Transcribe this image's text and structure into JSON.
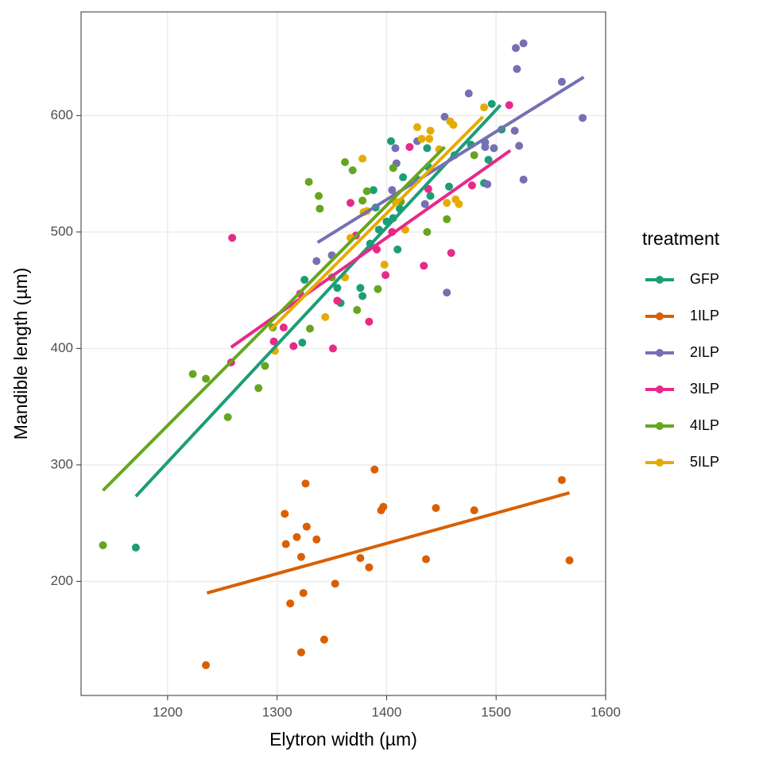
{
  "chart_data": {
    "type": "scatter",
    "x_label": "Elytron width (µm)",
    "y_label": "Mandible length (µm)",
    "legend_title": "treatment",
    "xlim": [
      1121,
      1600
    ],
    "ylim": [
      102,
      689
    ],
    "xticks": [
      1200,
      1300,
      1400,
      1500,
      1600
    ],
    "yticks": [
      200,
      300,
      400,
      500,
      600
    ],
    "grid": true,
    "legend": "right",
    "series": [
      {
        "name": "GFP",
        "color": "#1b9e77",
        "x": [
          1171,
          1325,
          1323,
          1355,
          1358,
          1376,
          1378,
          1385,
          1390,
          1393,
          1400,
          1404,
          1406,
          1410,
          1412,
          1415,
          1428,
          1437,
          1438,
          1440,
          1457,
          1462,
          1477,
          1489,
          1493,
          1496,
          1505,
          1388
        ],
        "values": [
          229,
          459,
          405,
          452,
          439,
          452,
          445,
          490,
          521,
          502,
          509,
          578,
          512,
          485,
          520,
          547,
          545,
          572,
          556,
          531,
          539,
          566,
          575,
          542,
          562,
          610,
          588,
          536
        ],
        "fit": {
          "x": [
            1171,
            1504
          ],
          "values": [
            273,
            609
          ]
        }
      },
      {
        "name": "1ILP",
        "color": "#d95f02",
        "x": [
          1235,
          1307,
          1308,
          1312,
          1318,
          1322,
          1322,
          1324,
          1326,
          1327,
          1336,
          1343,
          1353,
          1376,
          1384,
          1389,
          1395,
          1397,
          1436,
          1445,
          1480,
          1560,
          1567
        ],
        "values": [
          128,
          258,
          232,
          181,
          238,
          221,
          139,
          190,
          284,
          247,
          236,
          150,
          198,
          220,
          212,
          296,
          261,
          264,
          219,
          263,
          261,
          287,
          218
        ],
        "fit": {
          "x": [
            1236,
            1567
          ],
          "values": [
            190,
            276
          ]
        }
      },
      {
        "name": "2ILP",
        "color": "#7570b3",
        "x": [
          1336,
          1350,
          1408,
          1409,
          1405,
          1428,
          1435,
          1453,
          1455,
          1475,
          1490,
          1490,
          1492,
          1498,
          1517,
          1518,
          1519,
          1521,
          1525,
          1525,
          1560,
          1579
        ],
        "values": [
          475,
          480,
          572,
          559,
          536,
          578,
          524,
          599,
          448,
          619,
          573,
          577,
          541,
          572,
          587,
          658,
          640,
          574,
          662,
          545,
          629,
          598
        ],
        "fit": {
          "x": [
            1337,
            1580
          ],
          "values": [
            491,
            633
          ]
        }
      },
      {
        "name": "3ILP",
        "color": "#e7298a",
        "x": [
          1259,
          1258,
          1297,
          1306,
          1315,
          1321,
          1351,
          1355,
          1367,
          1372,
          1384,
          1391,
          1399,
          1405,
          1421,
          1434,
          1438,
          1459,
          1478,
          1512
        ],
        "values": [
          495,
          388,
          406,
          418,
          402,
          447,
          400,
          441,
          525,
          497,
          423,
          485,
          463,
          500,
          573,
          471,
          537,
          482,
          540,
          609
        ],
        "fit": {
          "x": [
            1258,
            1513
          ],
          "values": [
            401,
            570
          ]
        }
      },
      {
        "name": "4ILP",
        "color": "#66a61e",
        "x": [
          1141,
          1223,
          1235,
          1255,
          1283,
          1289,
          1296,
          1329,
          1330,
          1338,
          1339,
          1362,
          1369,
          1373,
          1378,
          1382,
          1392,
          1406,
          1413,
          1437,
          1455,
          1480,
          1350
        ],
        "values": [
          231,
          378,
          374,
          341,
          366,
          385,
          418,
          543,
          417,
          531,
          520,
          560,
          553,
          433,
          527,
          535,
          451,
          555,
          526,
          500,
          511,
          566,
          461
        ],
        "fit": {
          "x": [
            1141,
            1453
          ],
          "values": [
            278,
            573
          ]
        }
      },
      {
        "name": "5ILP",
        "color": "#e6ab02",
        "x": [
          1298,
          1344,
          1362,
          1367,
          1378,
          1379,
          1382,
          1398,
          1408,
          1417,
          1428,
          1432,
          1439,
          1440,
          1448,
          1455,
          1458,
          1461,
          1463,
          1466,
          1489
        ],
        "values": [
          398,
          427,
          461,
          495,
          563,
          517,
          518,
          472,
          526,
          502,
          590,
          580,
          580,
          587,
          571,
          525,
          595,
          592,
          528,
          524,
          607
        ],
        "fit": {
          "x": [
            1294,
            1488
          ],
          "values": [
            416,
            599
          ]
        }
      }
    ]
  }
}
